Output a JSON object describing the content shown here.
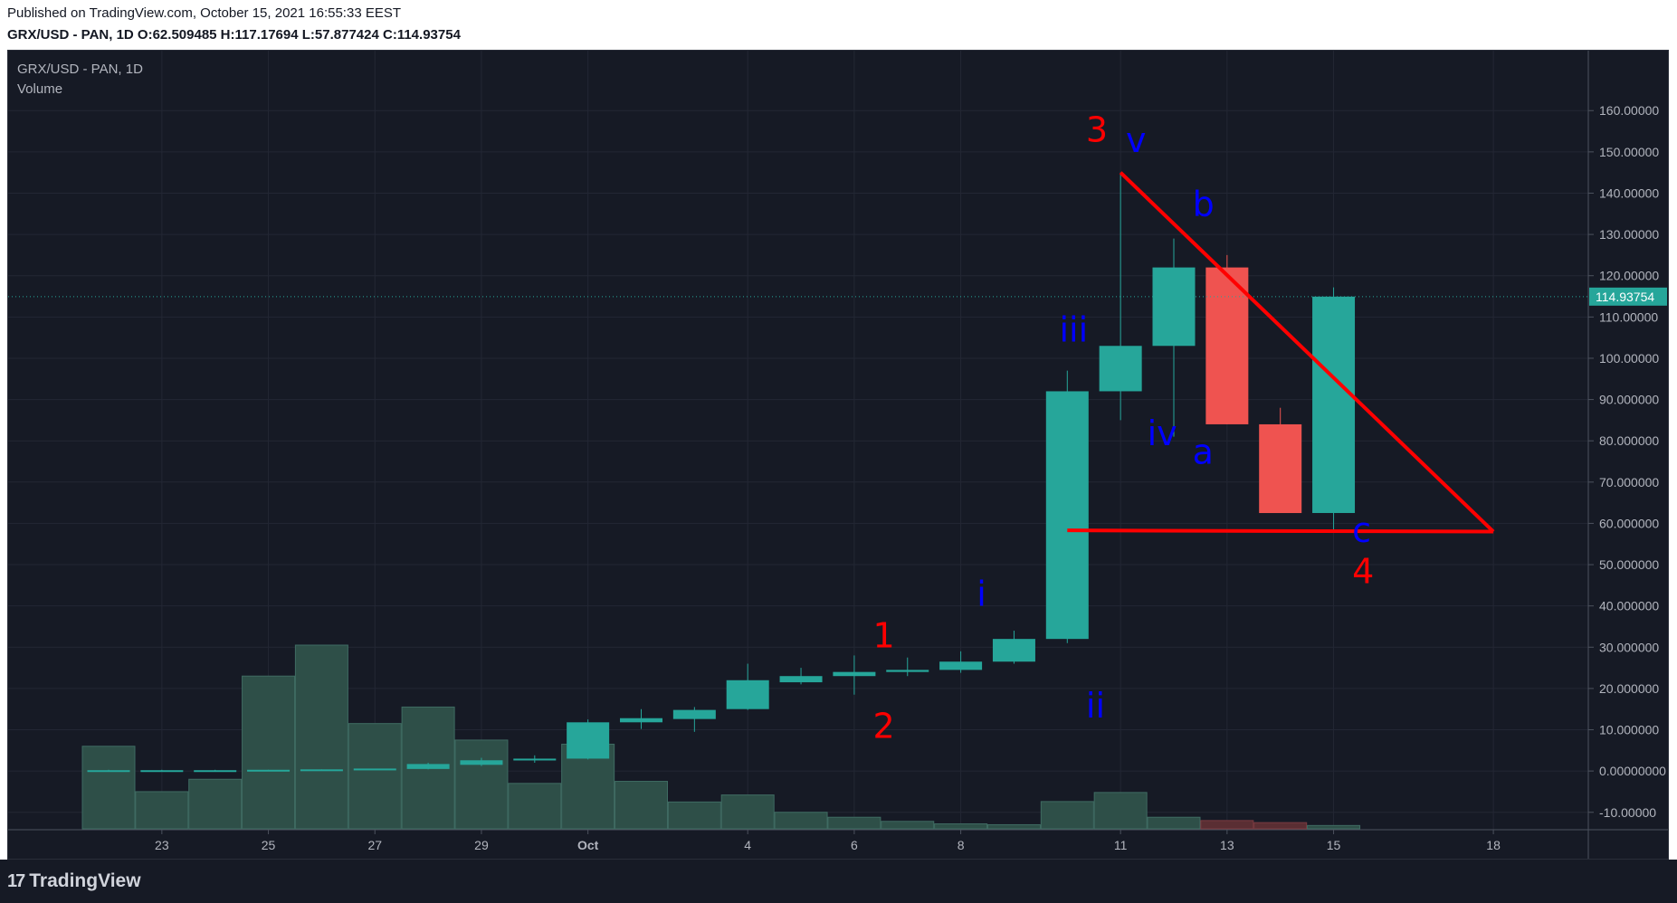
{
  "header": {
    "published": "Published on TradingView.com, October 15, 2021 16:55:33 EEST",
    "symbol_line": "GRX/USD - PAN, 1D",
    "o_label": "O:",
    "o_value": "62.509485",
    "h_label": "H:",
    "h_value": "117.17694",
    "l_label": "L:",
    "l_value": "57.877424",
    "c_label": "C:",
    "c_value": "114.93754"
  },
  "legend": {
    "symbol": "GRX/USD - PAN, 1D",
    "volume": "Volume"
  },
  "footer": {
    "brand": "TradingView",
    "logo_mark": "17"
  },
  "colors": {
    "background": "#161a25",
    "grid": "#232734",
    "up": "#26a69a",
    "down": "#ef5350",
    "volume_up": "#2e4f48",
    "volume_down": "#5a2e33",
    "annotation_red": "#ff0000",
    "annotation_blue": "#0000ff",
    "axis_text": "#b2b5be"
  },
  "chart_data": {
    "type": "candlestick",
    "symbol": "GRX/USD - PAN",
    "interval": "1D",
    "ylim": [
      -14,
      164
    ],
    "y_ticks": [
      "160.00000",
      "150.00000",
      "140.00000",
      "130.00000",
      "120.00000",
      "110.00000",
      "100.00000",
      "90.000000",
      "80.000000",
      "70.000000",
      "60.000000",
      "50.000000",
      "40.000000",
      "30.000000",
      "20.000000",
      "10.000000",
      "0.00000000",
      "-10.00000"
    ],
    "y_tick_values": [
      160,
      150,
      140,
      130,
      120,
      110,
      100,
      90,
      80,
      70,
      60,
      50,
      40,
      30,
      20,
      10,
      0,
      -10
    ],
    "x_ticks": [
      {
        "label": "23",
        "day": 1
      },
      {
        "label": "25",
        "day": 3
      },
      {
        "label": "27",
        "day": 5
      },
      {
        "label": "29",
        "day": 7
      },
      {
        "label": "Oct",
        "day": 9
      },
      {
        "label": "4",
        "day": 12
      },
      {
        "label": "6",
        "day": 14
      },
      {
        "label": "8",
        "day": 16
      },
      {
        "label": "11",
        "day": 19
      },
      {
        "label": "13",
        "day": 21
      },
      {
        "label": "15",
        "day": 23
      },
      {
        "label": "18",
        "day": 26
      }
    ],
    "last_price_label": "114.93754",
    "last_price": 114.93754,
    "candles": [
      {
        "day": 0,
        "o": 0.2,
        "h": 0.3,
        "l": 0.1,
        "c": 0.2
      },
      {
        "day": 1,
        "o": 0.2,
        "h": 0.3,
        "l": 0.1,
        "c": 0.2
      },
      {
        "day": 2,
        "o": 0.2,
        "h": 0.3,
        "l": 0.1,
        "c": 0.2
      },
      {
        "day": 3,
        "o": 0.2,
        "h": 0.3,
        "l": 0.1,
        "c": 0.3
      },
      {
        "day": 4,
        "o": 0.3,
        "h": 0.4,
        "l": 0.2,
        "c": 0.4
      },
      {
        "day": 5,
        "o": 0.4,
        "h": 0.5,
        "l": 0.3,
        "c": 0.6
      },
      {
        "day": 6,
        "o": 0.5,
        "h": 2.0,
        "l": 0.4,
        "c": 1.7
      },
      {
        "day": 7,
        "o": 1.5,
        "h": 3.2,
        "l": 1.2,
        "c": 2.6
      },
      {
        "day": 8,
        "o": 2.6,
        "h": 3.8,
        "l": 2.0,
        "c": 3.0
      },
      {
        "day": 9,
        "o": 3.0,
        "h": 12.5,
        "l": 2.8,
        "c": 11.8
      },
      {
        "day": 10,
        "o": 11.8,
        "h": 15.0,
        "l": 10.2,
        "c": 12.8
      },
      {
        "day": 11,
        "o": 12.6,
        "h": 15.5,
        "l": 9.5,
        "c": 14.8
      },
      {
        "day": 12,
        "o": 15.0,
        "h": 26.0,
        "l": 14.8,
        "c": 22.0
      },
      {
        "day": 13,
        "o": 21.5,
        "h": 25.0,
        "l": 21.0,
        "c": 23.0
      },
      {
        "day": 14,
        "o": 23.0,
        "h": 28.0,
        "l": 18.5,
        "c": 24.0
      },
      {
        "day": 15,
        "o": 24.0,
        "h": 27.5,
        "l": 23.0,
        "c": 24.5
      },
      {
        "day": 16,
        "o": 24.5,
        "h": 29.0,
        "l": 23.8,
        "c": 26.5
      },
      {
        "day": 17,
        "o": 26.5,
        "h": 34.0,
        "l": 26.0,
        "c": 32.0
      },
      {
        "day": 18,
        "o": 32.0,
        "h": 97.0,
        "l": 31.0,
        "c": 92.0
      },
      {
        "day": 19,
        "o": 92.0,
        "h": 145.0,
        "l": 85.0,
        "c": 103.0
      },
      {
        "day": 20,
        "o": 103.0,
        "h": 129.0,
        "l": 81.0,
        "c": 122.0
      },
      {
        "day": 21,
        "o": 122.0,
        "h": 125.0,
        "l": 84.0,
        "c": 84.0
      },
      {
        "day": 22,
        "o": 84.0,
        "h": 88.0,
        "l": 62.5,
        "c": 62.5
      },
      {
        "day": 23,
        "o": 62.509485,
        "h": 117.17694,
        "l": 57.877424,
        "c": 114.93754
      }
    ],
    "volume": [
      {
        "day": 0,
        "v": 20,
        "dir": "up"
      },
      {
        "day": 1,
        "v": 9,
        "dir": "up"
      },
      {
        "day": 2,
        "v": 12,
        "dir": "up"
      },
      {
        "day": 3,
        "v": 37,
        "dir": "up"
      },
      {
        "day": 4,
        "v": 44.5,
        "dir": "up"
      },
      {
        "day": 5,
        "v": 25.5,
        "dir": "up"
      },
      {
        "day": 6,
        "v": 29.5,
        "dir": "up"
      },
      {
        "day": 7,
        "v": 21.5,
        "dir": "up"
      },
      {
        "day": 8,
        "v": 11,
        "dir": "up"
      },
      {
        "day": 9,
        "v": 20.5,
        "dir": "up"
      },
      {
        "day": 10,
        "v": 11.5,
        "dir": "up"
      },
      {
        "day": 11,
        "v": 6.5,
        "dir": "up"
      },
      {
        "day": 12,
        "v": 8.2,
        "dir": "up"
      },
      {
        "day": 13,
        "v": 4,
        "dir": "up"
      },
      {
        "day": 14,
        "v": 2.8,
        "dir": "up"
      },
      {
        "day": 15,
        "v": 1.8,
        "dir": "up"
      },
      {
        "day": 16,
        "v": 1.2,
        "dir": "up"
      },
      {
        "day": 17,
        "v": 1.0,
        "dir": "up"
      },
      {
        "day": 18,
        "v": 6.6,
        "dir": "up"
      },
      {
        "day": 19,
        "v": 8.8,
        "dir": "up"
      },
      {
        "day": 20,
        "v": 2.8,
        "dir": "up"
      },
      {
        "day": 21,
        "v": 2.0,
        "dir": "down"
      },
      {
        "day": 22,
        "v": 1.5,
        "dir": "down"
      },
      {
        "day": 23,
        "v": 0.8,
        "dir": "up"
      }
    ],
    "volume_base": -14,
    "wave_labels": [
      {
        "text": "3",
        "day": 18.35,
        "price": 152.5,
        "color": "red",
        "size": 38
      },
      {
        "text": "v",
        "day": 19.1,
        "price": 150.0,
        "color": "blue",
        "size": 38
      },
      {
        "text": "b",
        "day": 20.35,
        "price": 134.5,
        "color": "blue",
        "size": 38
      },
      {
        "text": "iii",
        "day": 17.85,
        "price": 104.0,
        "color": "blue",
        "size": 38
      },
      {
        "text": "iv",
        "day": 19.5,
        "price": 79.0,
        "color": "blue",
        "size": 38
      },
      {
        "text": "a",
        "day": 20.35,
        "price": 74.5,
        "color": "blue",
        "size": 38
      },
      {
        "text": "c",
        "day": 23.35,
        "price": 55.5,
        "color": "blue",
        "size": 38
      },
      {
        "text": "4",
        "day": 23.35,
        "price": 45.5,
        "color": "red",
        "size": 38
      },
      {
        "text": "i",
        "day": 16.3,
        "price": 40.0,
        "color": "blue",
        "size": 38
      },
      {
        "text": "1",
        "day": 14.35,
        "price": 30.0,
        "color": "red",
        "size": 38
      },
      {
        "text": "ii",
        "day": 18.35,
        "price": 13.0,
        "color": "blue",
        "size": 38
      },
      {
        "text": "2",
        "day": 14.35,
        "price": 8.0,
        "color": "red",
        "size": 38
      }
    ],
    "trend_lines": [
      {
        "from": {
          "day": 19.0,
          "price": 145.0
        },
        "to": {
          "day": 26.0,
          "price": 58.0
        }
      },
      {
        "from": {
          "day": 18.0,
          "price": 58.3
        },
        "to": {
          "day": 26.0,
          "price": 58.0
        }
      }
    ]
  }
}
